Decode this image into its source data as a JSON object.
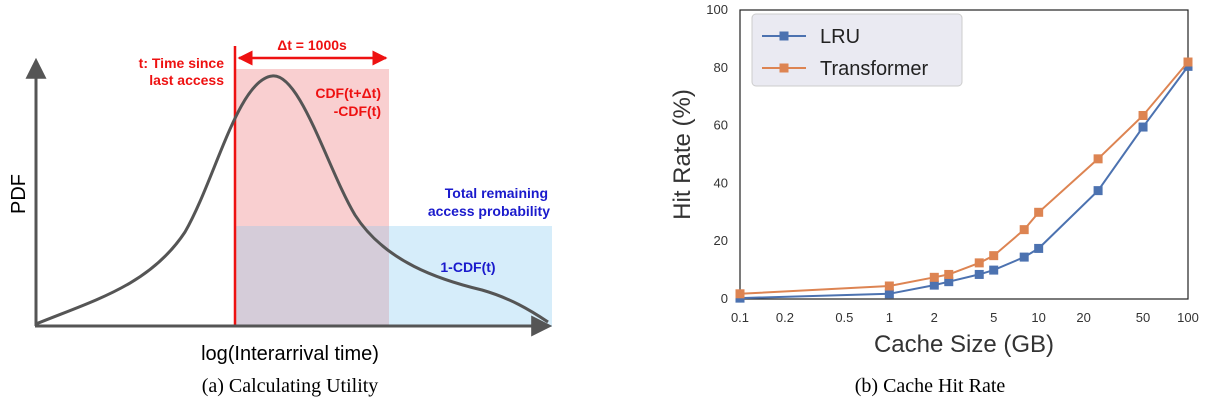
{
  "left_figure": {
    "ylabel": "PDF",
    "xlabel": "log(Interarrival time)",
    "t_label_line1": "t: Time since",
    "t_label_line2": "last access",
    "delta_label": "Δt = 1000s",
    "cdf_label_line1": "CDF(t+Δt)",
    "cdf_label_line2": "-CDF(t)",
    "remaining_line1": "Total remaining",
    "remaining_line2": "access probability",
    "one_minus_cdf": "1-CDF(t)",
    "colors": {
      "red": "#ee1111",
      "blue": "#1a1acc",
      "red_fill": "#f9cfd0",
      "blue_fill": "#d6edfa",
      "overlap_fill": "#d5ccd9",
      "curve": "#555555"
    }
  },
  "captions": {
    "a": "(a) Calculating Utility",
    "b": "(b) Cache Hit Rate"
  },
  "chart_data": {
    "type": "line",
    "xlabel": "Cache Size (GB)",
    "ylabel": "Hit Rate (%)",
    "xscale": "log",
    "xlim": [
      0.1,
      100
    ],
    "ylim": [
      0,
      100
    ],
    "xticks": [
      "0.1",
      "0.2",
      "0.5",
      "1",
      "2",
      "5",
      "10",
      "20",
      "50",
      "100"
    ],
    "yticks": [
      "0",
      "20",
      "40",
      "60",
      "80",
      "100"
    ],
    "legend": "top-left",
    "series": [
      {
        "name": "LRU",
        "color": "#4c72b0",
        "x": [
          0.1,
          1,
          2,
          2.5,
          4,
          5,
          8,
          10,
          25,
          50,
          100
        ],
        "y": [
          0.3,
          1.8,
          4.8,
          6.0,
          8.5,
          10.0,
          14.5,
          17.5,
          37.5,
          59.5,
          80.5
        ]
      },
      {
        "name": "Transformer",
        "color": "#dd8452",
        "x": [
          0.1,
          1,
          2,
          2.5,
          4,
          5,
          8,
          10,
          25,
          50,
          100
        ],
        "y": [
          1.8,
          4.5,
          7.5,
          8.5,
          12.5,
          15.0,
          24.0,
          30.0,
          48.5,
          63.5,
          82.0
        ]
      }
    ]
  }
}
